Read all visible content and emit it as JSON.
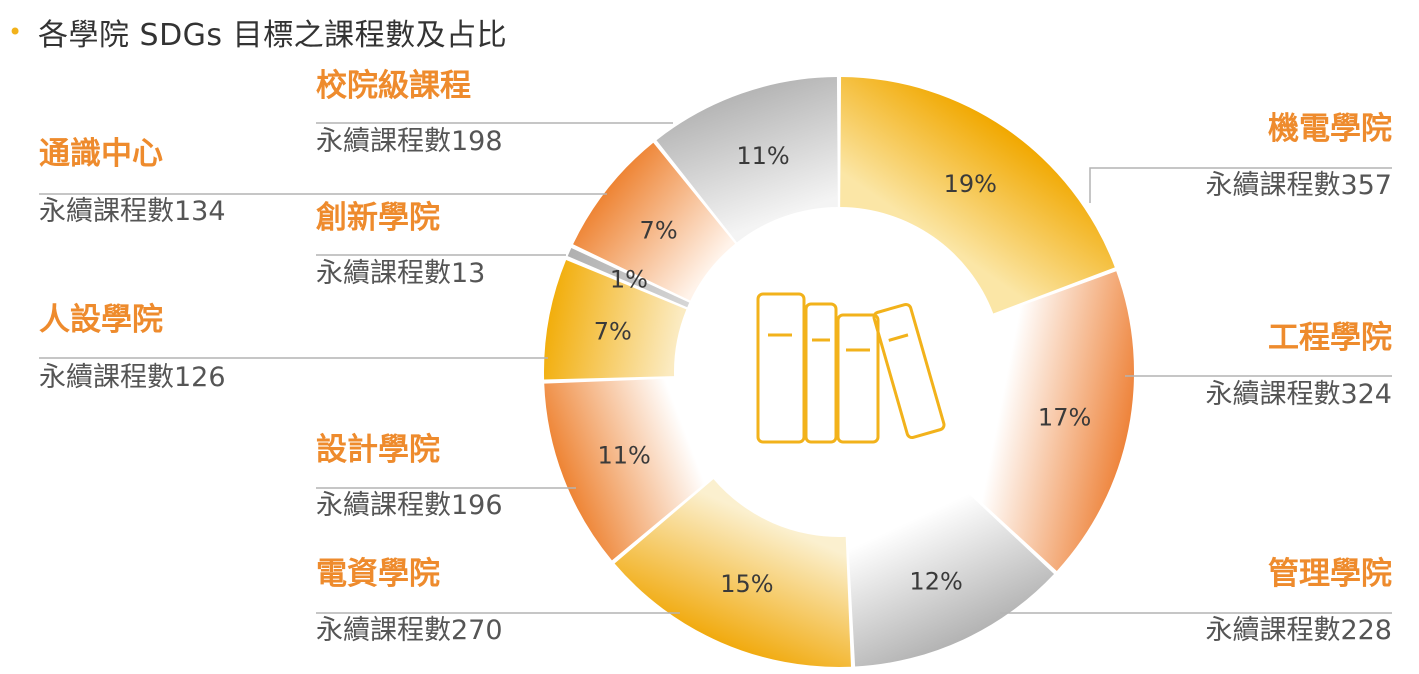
{
  "title": "各學院 SDGs 目標之課程數及占比",
  "chart_data": {
    "type": "pie",
    "variant": "donut",
    "title": "各學院 SDGs 目標之課程數及占比",
    "count_label_prefix": "永續課程數",
    "center_icon": "books-icon",
    "slices": [
      {
        "name": "機電學院",
        "count": 357,
        "percent_label": "19%",
        "colors": [
          "#FBE6A6",
          "#F1A800"
        ]
      },
      {
        "name": "工程學院",
        "count": 324,
        "percent_label": "17%",
        "colors": [
          "#FFFFFF",
          "#EE833A"
        ]
      },
      {
        "name": "管理學院",
        "count": 228,
        "percent_label": "12%",
        "colors": [
          "#FFFFFF",
          "#B3B3B3"
        ]
      },
      {
        "name": "電資學院",
        "count": 270,
        "percent_label": "15%",
        "colors": [
          "#FBF0CF",
          "#F1AA0E"
        ]
      },
      {
        "name": "設計學院",
        "count": 196,
        "percent_label": "11%",
        "colors": [
          "#FFFFFF",
          "#EE8434"
        ]
      },
      {
        "name": "人設學院",
        "count": 126,
        "percent_label": "7%",
        "colors": [
          "#FBEBC2",
          "#F2AE0C"
        ]
      },
      {
        "name": "創新學院",
        "count": 13,
        "percent_label": "1%",
        "colors": [
          "#D6D6D6",
          "#B0B0B0"
        ]
      },
      {
        "name": "通識中心",
        "count": 134,
        "percent_label": "7%",
        "colors": [
          "#FFF3EA",
          "#EE8434"
        ]
      },
      {
        "name": "校院級課程",
        "count": 198,
        "percent_label": "11%",
        "colors": [
          "#F4F4F4",
          "#B5B5B5"
        ]
      }
    ]
  }
}
